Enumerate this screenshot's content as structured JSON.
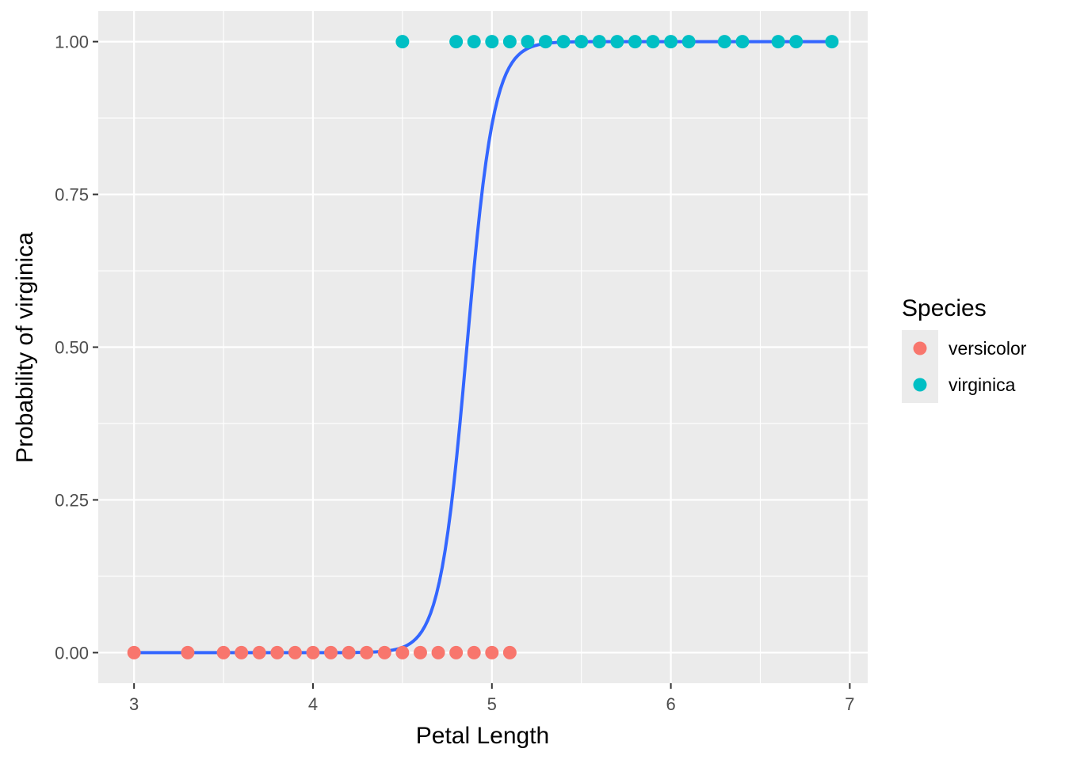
{
  "chart_data": {
    "type": "scatter",
    "xlabel": "Petal Length",
    "ylabel": "Probability of virginica",
    "xlim": [
      2.8,
      7.1
    ],
    "ylim": [
      -0.05,
      1.05
    ],
    "x_ticks": [
      3,
      4,
      5,
      6,
      7
    ],
    "x_tick_labels": [
      "3",
      "4",
      "5",
      "6",
      "7"
    ],
    "y_ticks": [
      0,
      0.25,
      0.5,
      0.75,
      1.0
    ],
    "y_tick_labels": [
      "0.00",
      "0.25",
      "0.50",
      "0.75",
      "1.00"
    ],
    "grid": true,
    "legend": {
      "title": "Species",
      "position": "right",
      "entries": [
        {
          "name": "versicolor",
          "color": "#F8766D"
        },
        {
          "name": "virginica",
          "color": "#00BFC4"
        }
      ]
    },
    "series": [
      {
        "name": "versicolor",
        "color": "#F8766D",
        "points": [
          [
            3.0,
            0
          ],
          [
            3.3,
            0
          ],
          [
            3.5,
            0
          ],
          [
            3.6,
            0
          ],
          [
            3.7,
            0
          ],
          [
            3.8,
            0
          ],
          [
            3.9,
            0
          ],
          [
            4.0,
            0
          ],
          [
            4.1,
            0
          ],
          [
            4.2,
            0
          ],
          [
            4.3,
            0
          ],
          [
            4.4,
            0
          ],
          [
            4.5,
            0
          ],
          [
            4.6,
            0
          ],
          [
            4.7,
            0
          ],
          [
            4.8,
            0
          ],
          [
            4.9,
            0
          ],
          [
            5.0,
            0
          ],
          [
            5.1,
            0
          ]
        ]
      },
      {
        "name": "virginica",
        "color": "#00BFC4",
        "points": [
          [
            4.5,
            1
          ],
          [
            4.8,
            1
          ],
          [
            4.9,
            1
          ],
          [
            5.0,
            1
          ],
          [
            5.1,
            1
          ],
          [
            5.2,
            1
          ],
          [
            5.3,
            1
          ],
          [
            5.4,
            1
          ],
          [
            5.5,
            1
          ],
          [
            5.6,
            1
          ],
          [
            5.7,
            1
          ],
          [
            5.8,
            1
          ],
          [
            5.9,
            1
          ],
          [
            6.0,
            1
          ],
          [
            6.1,
            1
          ],
          [
            6.3,
            1
          ],
          [
            6.4,
            1
          ],
          [
            6.6,
            1
          ],
          [
            6.7,
            1
          ],
          [
            6.9,
            1
          ]
        ]
      }
    ],
    "fit_curve": {
      "type": "logistic",
      "color": "#3366FF",
      "x_range": [
        3.0,
        6.9
      ],
      "midpoint": 4.86,
      "slope": 13.2
    }
  }
}
